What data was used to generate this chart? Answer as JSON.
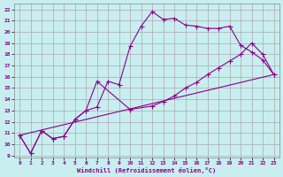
{
  "xlabel": "Windchill (Refroidissement éolien,°C)",
  "background_color": "#c8eef0",
  "grid_color": "#aaaaaa",
  "line_color": "#880088",
  "xlim": [
    -0.5,
    23.5
  ],
  "ylim": [
    8.8,
    22.5
  ],
  "xticks": [
    0,
    1,
    2,
    3,
    4,
    5,
    6,
    7,
    8,
    9,
    10,
    11,
    12,
    13,
    14,
    15,
    16,
    17,
    18,
    19,
    20,
    21,
    22,
    23
  ],
  "yticks": [
    9,
    10,
    11,
    12,
    13,
    14,
    15,
    16,
    17,
    18,
    19,
    20,
    21,
    22
  ],
  "curve1_x": [
    0,
    1,
    2,
    3,
    4,
    5,
    6,
    7,
    8,
    9,
    10,
    11,
    12,
    13,
    14,
    15,
    16,
    17,
    18,
    19,
    20,
    21,
    22,
    23
  ],
  "curve1_y": [
    10.8,
    9.2,
    11.2,
    10.5,
    10.7,
    12.2,
    13.0,
    13.3,
    15.6,
    15.3,
    18.7,
    20.5,
    21.8,
    21.1,
    21.2,
    20.6,
    20.5,
    20.3,
    20.3,
    20.5,
    18.8,
    18.2,
    17.5,
    16.2
  ],
  "curve2_x": [
    0,
    1,
    2,
    3,
    4,
    5,
    6,
    7,
    10,
    12,
    13,
    14,
    15,
    16,
    17,
    18,
    19,
    20,
    21,
    22,
    23
  ],
  "curve2_y": [
    10.8,
    9.2,
    11.2,
    10.5,
    10.7,
    12.2,
    13.0,
    15.6,
    13.1,
    13.4,
    13.8,
    14.3,
    15.0,
    15.5,
    16.2,
    16.8,
    17.4,
    18.0,
    19.0,
    18.0,
    16.2
  ],
  "curve3_x": [
    0,
    23
  ],
  "curve3_y": [
    10.8,
    16.2
  ]
}
